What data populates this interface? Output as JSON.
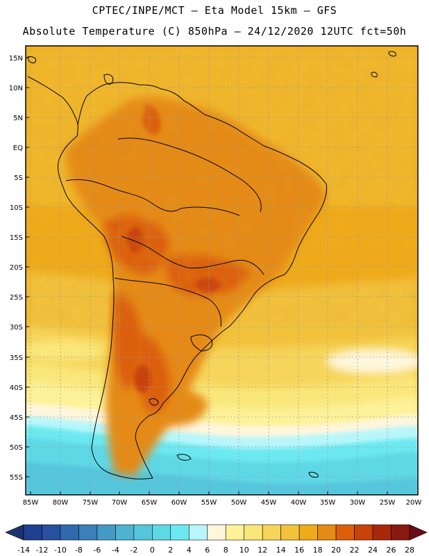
{
  "title_line1": "CPTEC/INPE/MCT —  Eta Model 15km — GFS",
  "title_line2": "Absolute Temperature (C) 850hPa — 24/12/2020 12UTC fct=50h",
  "lat_labels": [
    "15N",
    "10N",
    "5N",
    "EQ",
    "5S",
    "10S",
    "15S",
    "20S",
    "25S",
    "30S",
    "35S",
    "40S",
    "45S",
    "50S",
    "55S"
  ],
  "lon_labels": [
    "85W",
    "80W",
    "75W",
    "70W",
    "65W",
    "60W",
    "55W",
    "50W",
    "45W",
    "40W",
    "35W",
    "30W",
    "25W",
    "20W"
  ],
  "colorbar": {
    "labels": [
      "-14",
      "-12",
      "-10",
      "-8",
      "-6",
      "-4",
      "-2",
      "0",
      "2",
      "4",
      "6",
      "8",
      "10",
      "12",
      "14",
      "16",
      "18",
      "20",
      "22",
      "24",
      "26",
      "28"
    ],
    "under_color": "#1c3270",
    "over_color": "#6b0b1a",
    "colors": [
      "#1f3f8f",
      "#27519f",
      "#2f6aad",
      "#3b80bb",
      "#449ac6",
      "#4db3d2",
      "#56c6dc",
      "#5fd8e6",
      "#6ce9f0",
      "#b8f6fb",
      "#fff6dc",
      "#fdf29a",
      "#fae77a",
      "#f6d55a",
      "#f2c23c",
      "#efab1a",
      "#e58a12",
      "#dc5f0a",
      "#c9420a",
      "#a9280c",
      "#8a1a10"
    ]
  },
  "colors": {
    "frame": "#000000",
    "grid": "#9a9a9a",
    "ocean_base": "#efab1a"
  }
}
